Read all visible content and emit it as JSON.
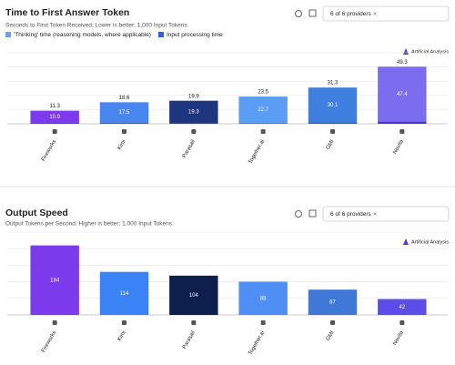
{
  "ui": {
    "providers_filter": "6 of 6 providers",
    "logo": "Artificial Analysis"
  },
  "chart_data": [
    {
      "type": "stacked-bar",
      "title": "Time to First Answer Token",
      "subtitle": "Seconds to First Token Received; Lower is better; 1,000 Input Tokens",
      "categories": [
        "Fireworks",
        "Kimi",
        "Parasail",
        "Together.ai",
        "GMI",
        "Novita"
      ],
      "series": [
        {
          "name": "'Thinking' time (reasoning models, where applicable)",
          "color": "#6b9ef5",
          "colors": [
            "#7c3aed",
            "#4a86f0",
            "#1e3580",
            "#5b9cf5",
            "#3f7fe0",
            "#7b6cf0"
          ],
          "values": [
            10.9,
            17.5,
            19.3,
            22.7,
            30.1,
            47.4
          ]
        },
        {
          "name": "Input processing time",
          "color": "#2f5fe0",
          "colors": [
            "#5b21b6",
            "#2f5fd0",
            "#142660",
            "#3f7fe0",
            "#2a62c0",
            "#4338ca"
          ],
          "values": [
            0.4,
            1.1,
            0.6,
            0.8,
            1.2,
            1.9
          ]
        }
      ],
      "totals": [
        11.3,
        18.6,
        19.9,
        23.5,
        31.3,
        49.3
      ],
      "ylim": [
        0,
        55
      ],
      "grid": true
    },
    {
      "type": "bar",
      "title": "Output Speed",
      "subtitle": "Output Tokens per Second; Higher is better; 1,000 Input Tokens",
      "categories": [
        "Fireworks",
        "Kimi",
        "Parasail",
        "Together.ai",
        "GMI",
        "Novita"
      ],
      "values": [
        184,
        114,
        104,
        88,
        67,
        42
      ],
      "colors": [
        "#7c3aed",
        "#3b82f6",
        "#0f1f4d",
        "#4f8ff5",
        "#3f78d6",
        "#5b4ee8"
      ],
      "ylim": [
        0,
        200
      ],
      "grid": true
    }
  ]
}
